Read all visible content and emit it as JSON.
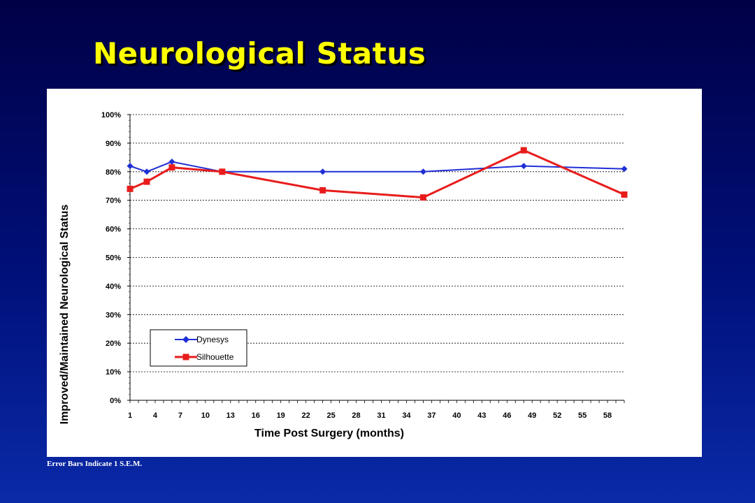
{
  "slide": {
    "title": "Neurological Status",
    "footnote": "Error Bars Indicate 1 S.E.M."
  },
  "colors": {
    "dynesys": "#1f2fd6",
    "silhouette": "#e81c1c",
    "title": "#ffff00"
  },
  "chart_data": {
    "type": "line",
    "title": "",
    "xlabel": "Time Post Surgery (months)",
    "ylabel": "Improved/Maintained Neurological Status",
    "xlim": [
      1,
      60
    ],
    "ylim": [
      0,
      1
    ],
    "x_ticks": [
      1,
      4,
      7,
      10,
      13,
      16,
      19,
      22,
      25,
      28,
      31,
      34,
      37,
      40,
      43,
      46,
      49,
      52,
      55,
      58
    ],
    "y_ticks": [
      0,
      0.1,
      0.2,
      0.3,
      0.4,
      0.5,
      0.6,
      0.7,
      0.8,
      0.9,
      1.0
    ],
    "y_tick_labels": [
      "0%",
      "10%",
      "20%",
      "30%",
      "40%",
      "50%",
      "60%",
      "70%",
      "80%",
      "90%",
      "100%"
    ],
    "grid": "horizontal",
    "legend_position": "bottom-left",
    "series": [
      {
        "name": "Dynesys",
        "marker": "diamond",
        "x": [
          1,
          3,
          6,
          12,
          24,
          36,
          48,
          60
        ],
        "values": [
          0.82,
          0.8,
          0.835,
          0.8,
          0.8,
          0.8,
          0.82,
          0.81
        ]
      },
      {
        "name": "Silhouette",
        "marker": "square",
        "x": [
          1,
          3,
          6,
          12,
          24,
          36,
          48,
          60
        ],
        "values": [
          0.74,
          0.765,
          0.815,
          0.8,
          0.735,
          0.71,
          0.875,
          0.72
        ]
      }
    ]
  }
}
